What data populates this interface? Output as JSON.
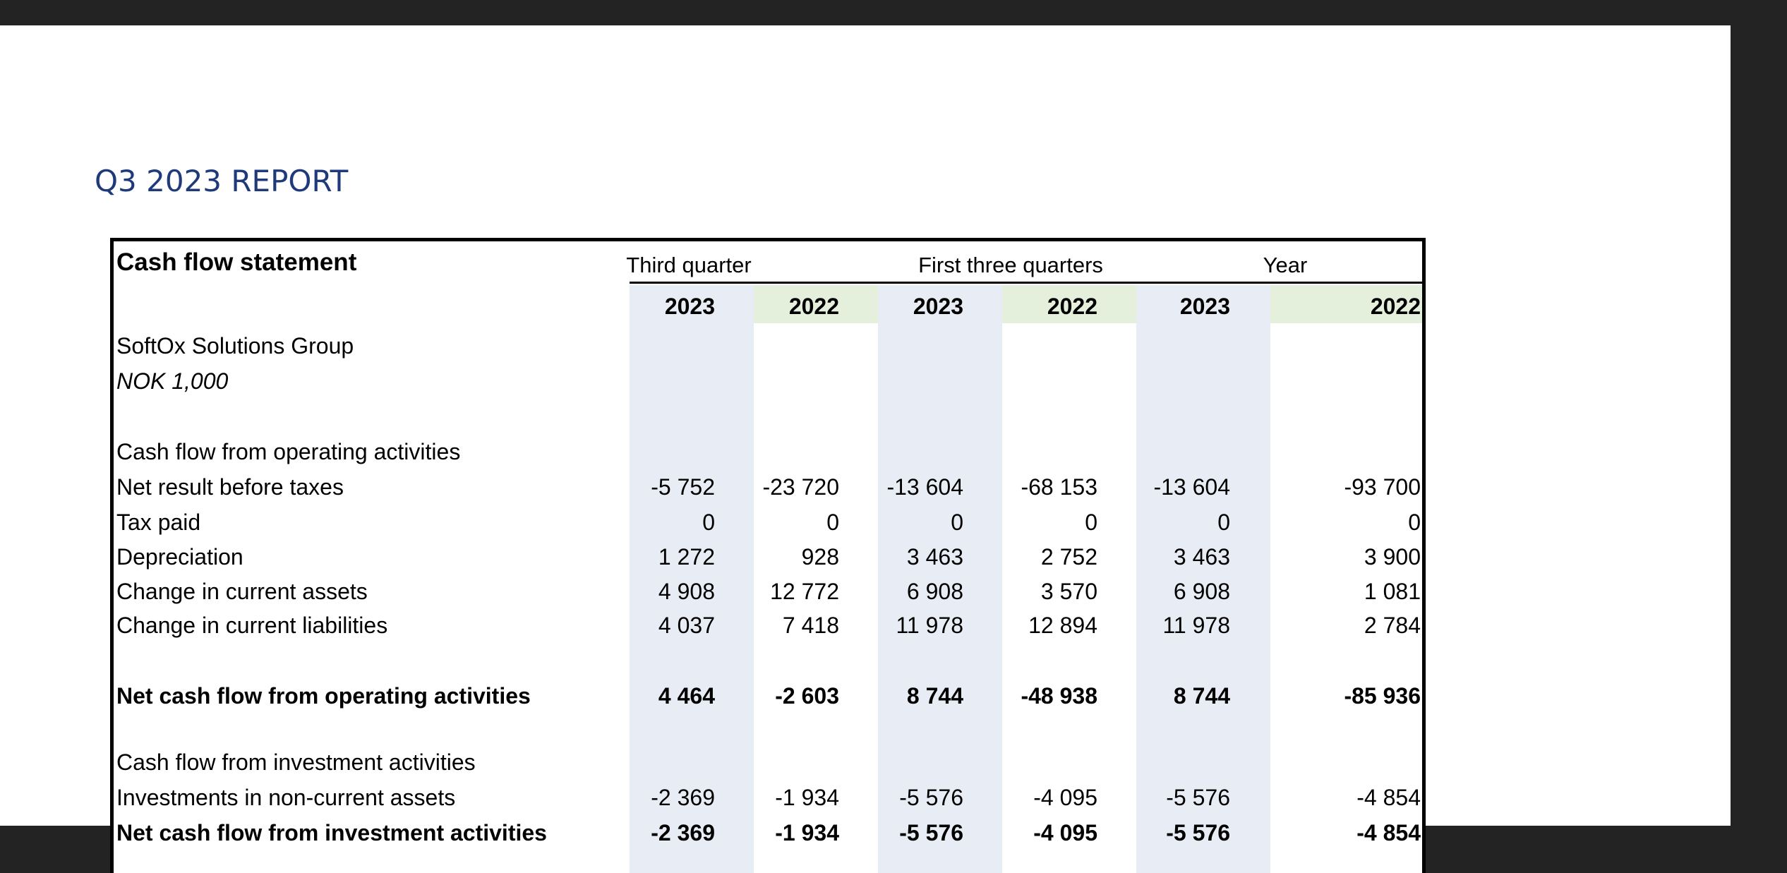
{
  "report": {
    "title": "Q3 2023 REPORT"
  },
  "statement": {
    "title": "Cash flow statement",
    "company": "SoftOx Solutions Group",
    "unit": "NOK 1,000",
    "period_groups": [
      "Third quarter",
      "First three quarters",
      "Year"
    ],
    "years": [
      "2023",
      "2022",
      "2023",
      "2022",
      "2023",
      "2022"
    ],
    "sections": {
      "operating_header": "Cash flow from operating activities",
      "investment_header": "Cash flow from investment activities"
    },
    "rows": [
      {
        "label": "Net result before taxes",
        "values": [
          "-5 752",
          "-23 720",
          "-13 604",
          "-68 153",
          "-13 604",
          "-93 700"
        ],
        "bold": false
      },
      {
        "label": "Tax paid",
        "values": [
          "0",
          "0",
          "0",
          "0",
          "0",
          "0"
        ],
        "bold": false
      },
      {
        "label": "Depreciation",
        "values": [
          "1 272",
          "928",
          "3 463",
          "2 752",
          "3 463",
          "3 900"
        ],
        "bold": false
      },
      {
        "label": "Change in current assets",
        "values": [
          "4 908",
          "12 772",
          "6 908",
          "3 570",
          "6 908",
          "1 081"
        ],
        "bold": false
      },
      {
        "label": "Change in current liabilities",
        "values": [
          "4 037",
          "7 418",
          "11 978",
          "12 894",
          "11 978",
          "2 784"
        ],
        "bold": false
      },
      {
        "label": "Net cash flow from operating activities",
        "values": [
          "4 464",
          "-2 603",
          "8 744",
          "-48 938",
          "8 744",
          "-85 936"
        ],
        "bold": true
      },
      {
        "label": "Investments in non-current assets",
        "values": [
          "-2 369",
          "-1 934",
          "-5 576",
          "-4 095",
          "-5 576",
          "-4 854"
        ],
        "bold": false
      },
      {
        "label": "Net cash flow from investment activities",
        "values": [
          "-2 369",
          "-1 934",
          "-5 576",
          "-4 095",
          "-5 576",
          "-4 854"
        ],
        "bold": true
      }
    ]
  }
}
